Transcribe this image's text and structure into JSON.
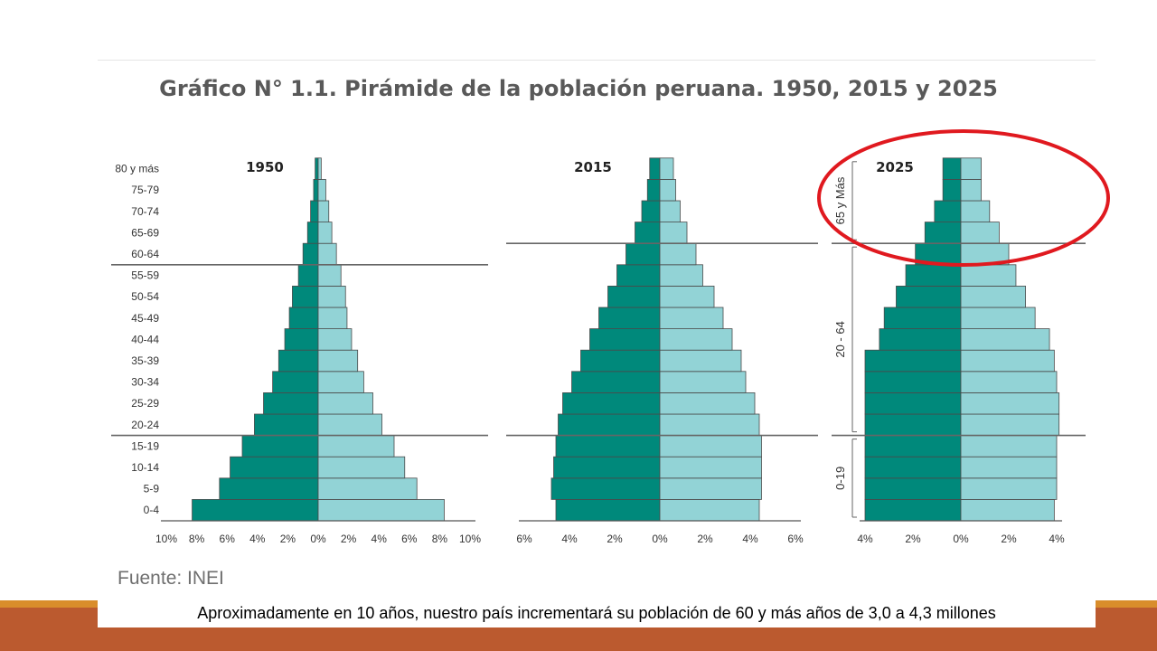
{
  "slide": {
    "title": "Gráfico N° 1.1. Pirámide de la población peruana. 1950, 2015 y 2025",
    "source": "Fuente: INEI",
    "caption": "Aproximadamente en 10 años, nuestro país incrementará su población de 60 y más años de 3,0 a 4,3 millones"
  },
  "colors": {
    "male": "#00897b",
    "female": "#92d3d6",
    "stroke": "#4a4a4a",
    "highlight": "#e0191f",
    "footer": "#bb5a2f",
    "footer_accent": "#d98d2b"
  },
  "chart_data": [
    {
      "type": "bar",
      "orientation": "horizontal-pyramid",
      "title": "1950",
      "categories": [
        "0-4",
        "5-9",
        "10-14",
        "15-19",
        "20-24",
        "25-29",
        "30-34",
        "35-39",
        "40-44",
        "45-49",
        "50-54",
        "55-59",
        "60-64",
        "65-69",
        "70-74",
        "75-79",
        "80 y más"
      ],
      "series": [
        {
          "values": [
            8.3,
            6.5,
            5.8,
            5.0,
            4.2,
            3.6,
            3.0,
            2.6,
            2.2,
            1.9,
            1.7,
            1.3,
            1.0,
            0.7,
            0.5,
            0.3,
            0.2
          ]
        },
        {
          "values": [
            8.3,
            6.5,
            5.7,
            5.0,
            4.2,
            3.6,
            3.0,
            2.6,
            2.2,
            1.9,
            1.8,
            1.5,
            1.2,
            0.9,
            0.7,
            0.5,
            0.2
          ]
        }
      ],
      "xlim": [
        -10,
        10
      ],
      "xticks": [
        "10%",
        "8%",
        "6%",
        "4%",
        "2%",
        "0%",
        "2%",
        "4%",
        "6%",
        "8%",
        "10%"
      ],
      "separators_after": [
        "15-19",
        "55-59"
      ]
    },
    {
      "type": "bar",
      "orientation": "horizontal-pyramid",
      "title": "2015",
      "categories": [
        "0-4",
        "5-9",
        "10-14",
        "15-19",
        "20-24",
        "25-29",
        "30-34",
        "35-39",
        "40-44",
        "45-49",
        "50-54",
        "55-59",
        "60-64",
        "65-69",
        "70-74",
        "75-79",
        "80 y más"
      ],
      "series": [
        {
          "values": [
            4.6,
            4.8,
            4.7,
            4.6,
            4.5,
            4.3,
            3.9,
            3.5,
            3.1,
            2.7,
            2.3,
            1.9,
            1.5,
            1.1,
            0.8,
            0.55,
            0.45
          ]
        },
        {
          "values": [
            4.4,
            4.5,
            4.5,
            4.5,
            4.4,
            4.2,
            3.8,
            3.6,
            3.2,
            2.8,
            2.4,
            1.9,
            1.6,
            1.2,
            0.9,
            0.7,
            0.6
          ]
        }
      ],
      "xlim": [
        -6,
        6
      ],
      "xticks": [
        "6%",
        "4%",
        "2%",
        "0%",
        "2%",
        "4%",
        "6%"
      ],
      "separators_after": [
        "15-19",
        "60-64"
      ]
    },
    {
      "type": "bar",
      "orientation": "horizontal-pyramid",
      "title": "2025",
      "categories": [
        "0-4",
        "5-9",
        "10-14",
        "15-19",
        "20-24",
        "25-29",
        "30-34",
        "35-39",
        "40-44",
        "45-49",
        "50-54",
        "55-59",
        "60-64",
        "65-69",
        "70-74",
        "75-79",
        "80 y más"
      ],
      "series": [
        {
          "values": [
            4.0,
            4.0,
            4.0,
            4.0,
            4.0,
            4.0,
            4.0,
            4.0,
            3.4,
            3.2,
            2.7,
            2.3,
            1.9,
            1.5,
            1.1,
            0.75,
            0.75
          ]
        },
        {
          "values": [
            3.9,
            4.0,
            4.0,
            4.0,
            4.1,
            4.1,
            4.0,
            3.9,
            3.7,
            3.1,
            2.7,
            2.3,
            2.0,
            1.6,
            1.2,
            0.85,
            0.85
          ]
        }
      ],
      "xlim": [
        -4,
        4
      ],
      "xticks": [
        "4%",
        "2%",
        "0%",
        "2%",
        "4%"
      ],
      "separators_after": [
        "15-19",
        "60-64"
      ],
      "group_labels": [
        "0-19",
        "20 - 64",
        "65 y Más"
      ]
    }
  ]
}
